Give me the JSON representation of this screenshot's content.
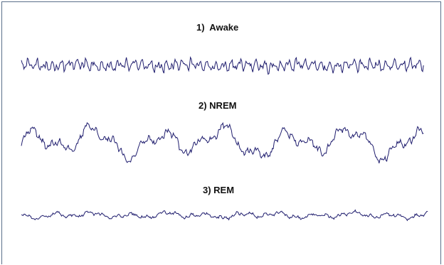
{
  "labels": {
    "awake": "1)  Awake",
    "nrem": "2) NREM",
    "rem": "3) REM"
  },
  "colors": {
    "trace": "#1f1d6e",
    "border": "#5a6f8a",
    "background": "#ffffff"
  }
}
